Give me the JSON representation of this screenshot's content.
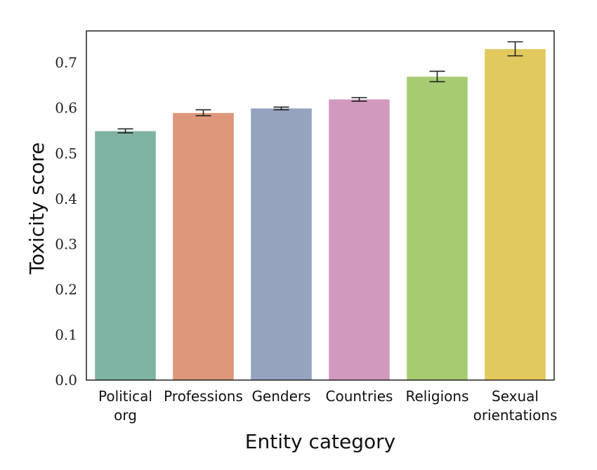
{
  "chart_data": {
    "type": "bar",
    "title": "",
    "xlabel": "Entity category",
    "ylabel": "Toxicity score",
    "ylim": [
      0,
      0.77
    ],
    "yticks": [
      "0.0",
      "0.1",
      "0.2",
      "0.3",
      "0.4",
      "0.5",
      "0.6",
      "0.7"
    ],
    "grid": false,
    "legend": "none",
    "categories": [
      [
        "Political",
        "org"
      ],
      [
        "Professions"
      ],
      [
        "Genders"
      ],
      [
        "Countries"
      ],
      [
        "Religions"
      ],
      [
        "Sexual",
        "orientations"
      ]
    ],
    "values": [
      0.549,
      0.589,
      0.599,
      0.619,
      0.669,
      0.73
    ],
    "error_low": [
      0.545,
      0.583,
      0.596,
      0.615,
      0.658,
      0.715
    ],
    "error_high": [
      0.554,
      0.596,
      0.602,
      0.623,
      0.681,
      0.746
    ],
    "colors": [
      "#7fb3a3",
      "#dd977a",
      "#96a3bf",
      "#d299bf",
      "#a7cb71",
      "#e1c95e"
    ]
  }
}
